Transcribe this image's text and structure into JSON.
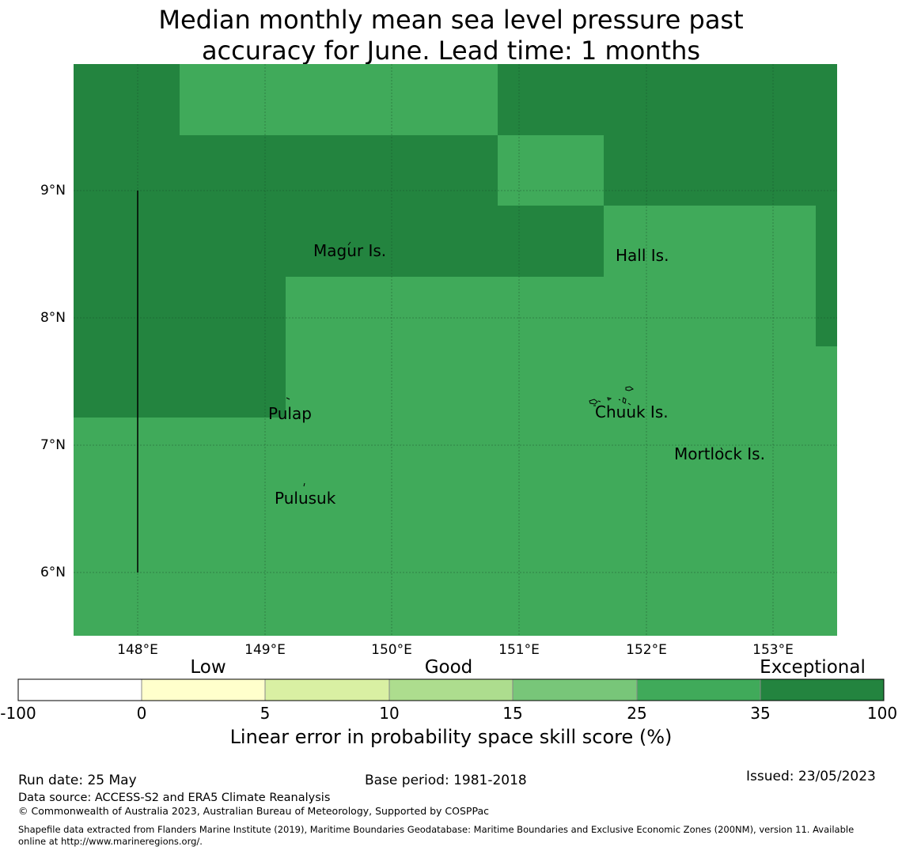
{
  "title": {
    "line1": "Median monthly mean sea level pressure past",
    "line2": "accuracy for June. Lead time: 1 months"
  },
  "map": {
    "lat_labels": [
      "9°N",
      "8°N",
      "7°N",
      "6°N"
    ],
    "lon_labels": [
      "148°E",
      "149°E",
      "150°E",
      "151°E",
      "152°E",
      "153°E"
    ],
    "places": {
      "magur": "Magur Is.",
      "hall": "Hall Is.",
      "pulap": "Pulap",
      "chuuk": "Chuuk Is.",
      "mortlock": "Mortlock Is.",
      "pulusuk": "Pulusuk"
    },
    "colors": {
      "exceptional": "#23843F",
      "good_high": "#40AA5A"
    }
  },
  "colorbar": {
    "categories": [
      "Low",
      "Good",
      "Exceptional"
    ],
    "ticks": [
      "-100",
      "0",
      "5",
      "10",
      "15",
      "25",
      "35",
      "100"
    ],
    "colors": [
      "#FFFFFF",
      "#FFFFCC",
      "#D9F0A3",
      "#ADDD8E",
      "#78C679",
      "#40AA5A",
      "#23843F"
    ],
    "label": "Linear error in probability space skill score (%)"
  },
  "footer": {
    "run_date": "Run date: 25 May",
    "base_period": "Base period: 1981-2018",
    "issued": "Issued: 23/05/2023",
    "data_source": "Data source: ACCESS-S2 and ERA5 Climate Reanalysis",
    "copyright": "© Commonwealth of Australia 2023, Australian Bureau of Meteorology, Supported by COSPPac",
    "shapefile": "Shapefile data extracted from Flanders Marine Institute (2019), Maritime Boundaries Geodatabase: Maritime Boundaries and Exclusive Economic Zones (200NM), version 11. Available",
    "shapefile_line2": "online at http://www.marineregions.org/."
  }
}
